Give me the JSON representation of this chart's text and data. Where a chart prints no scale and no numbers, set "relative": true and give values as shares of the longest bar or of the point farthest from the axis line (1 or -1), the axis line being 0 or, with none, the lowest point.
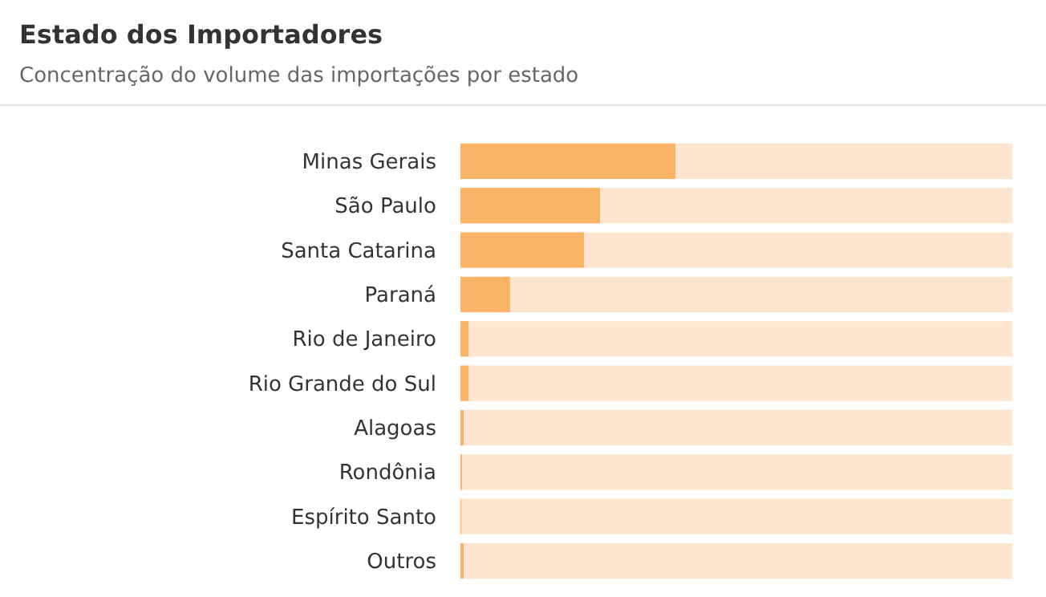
{
  "chart_data": {
    "type": "bar",
    "orientation": "horizontal",
    "stacked": true,
    "relative": true,
    "title": "Estado dos Importadores",
    "subtitle": "Concentração do volume das importações por estado",
    "categories": [
      "Minas Gerais",
      "São Paulo",
      "Santa Catarina",
      "Paraná",
      "Rio de Janeiro",
      "Rio Grande do Sul",
      "Alagoas",
      "Rondônia",
      "Espírito Santo",
      "Outros"
    ],
    "series": [
      {
        "color": "#fbb466",
        "values": [
          0.39,
          0.253,
          0.224,
          0.09,
          0.015,
          0.015,
          0.006,
          0.003,
          0.002,
          0.006
        ]
      },
      {
        "color": "#fde5cf",
        "values": [
          0.61,
          0.747,
          0.776,
          0.91,
          0.985,
          0.985,
          0.994,
          0.997,
          0.998,
          0.994
        ]
      }
    ]
  }
}
